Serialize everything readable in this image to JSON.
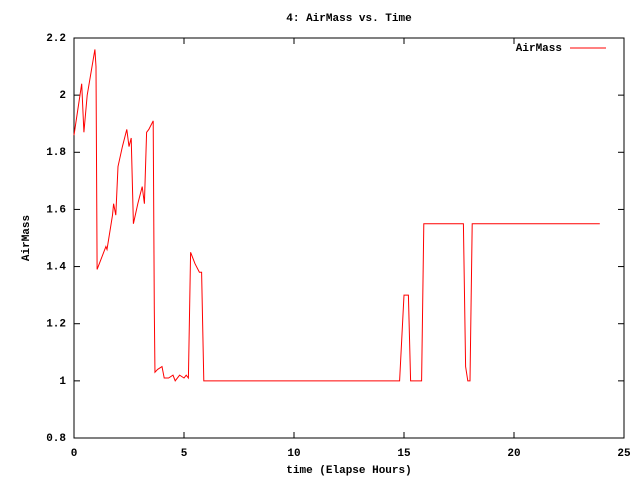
{
  "chart_data": {
    "type": "line",
    "title": "4: AirMass vs. Time",
    "x_label": "time (Elapse Hours)",
    "y_label": "AirMass",
    "xlim": [
      0,
      25
    ],
    "xticks": [
      0,
      5,
      10,
      15,
      20,
      25
    ],
    "ylim": [
      0.8,
      2.2
    ],
    "yticks": [
      0.8,
      1,
      1.2,
      1.4,
      1.6,
      1.8,
      2,
      2.2
    ],
    "legend": "top-right",
    "grid": false,
    "x": [
      0,
      0.35,
      0.45,
      0.6,
      0.95,
      1.0,
      1.05,
      1.45,
      1.5,
      1.75,
      1.8,
      1.9,
      2.0,
      2.2,
      2.4,
      2.5,
      2.6,
      2.7,
      2.9,
      3.1,
      3.2,
      3.3,
      3.4,
      3.6,
      3.65,
      3.68,
      3.8,
      4.0,
      4.1,
      4.3,
      4.5,
      4.6,
      4.8,
      5.0,
      5.1,
      5.2,
      5.3,
      5.5,
      5.7,
      5.8,
      5.9,
      14.8,
      15.0,
      15.2,
      15.3,
      15.8,
      15.9,
      17.7,
      17.8,
      17.9,
      18.0,
      18.1,
      23.9
    ],
    "series": [
      {
        "name": "AirMass",
        "color": "#ff0000",
        "values": [
          1.86,
          2.04,
          1.87,
          2.0,
          2.16,
          2.1,
          1.39,
          1.47,
          1.46,
          1.58,
          1.62,
          1.58,
          1.75,
          1.82,
          1.88,
          1.82,
          1.85,
          1.55,
          1.62,
          1.68,
          1.62,
          1.87,
          1.88,
          1.91,
          1.25,
          1.03,
          1.04,
          1.05,
          1.01,
          1.01,
          1.02,
          1.0,
          1.02,
          1.01,
          1.02,
          1.01,
          1.45,
          1.41,
          1.38,
          1.38,
          1.0,
          1.0,
          1.3,
          1.3,
          1.0,
          1.0,
          1.55,
          1.55,
          1.05,
          1.0,
          1.0,
          1.55,
          1.55
        ]
      }
    ]
  }
}
